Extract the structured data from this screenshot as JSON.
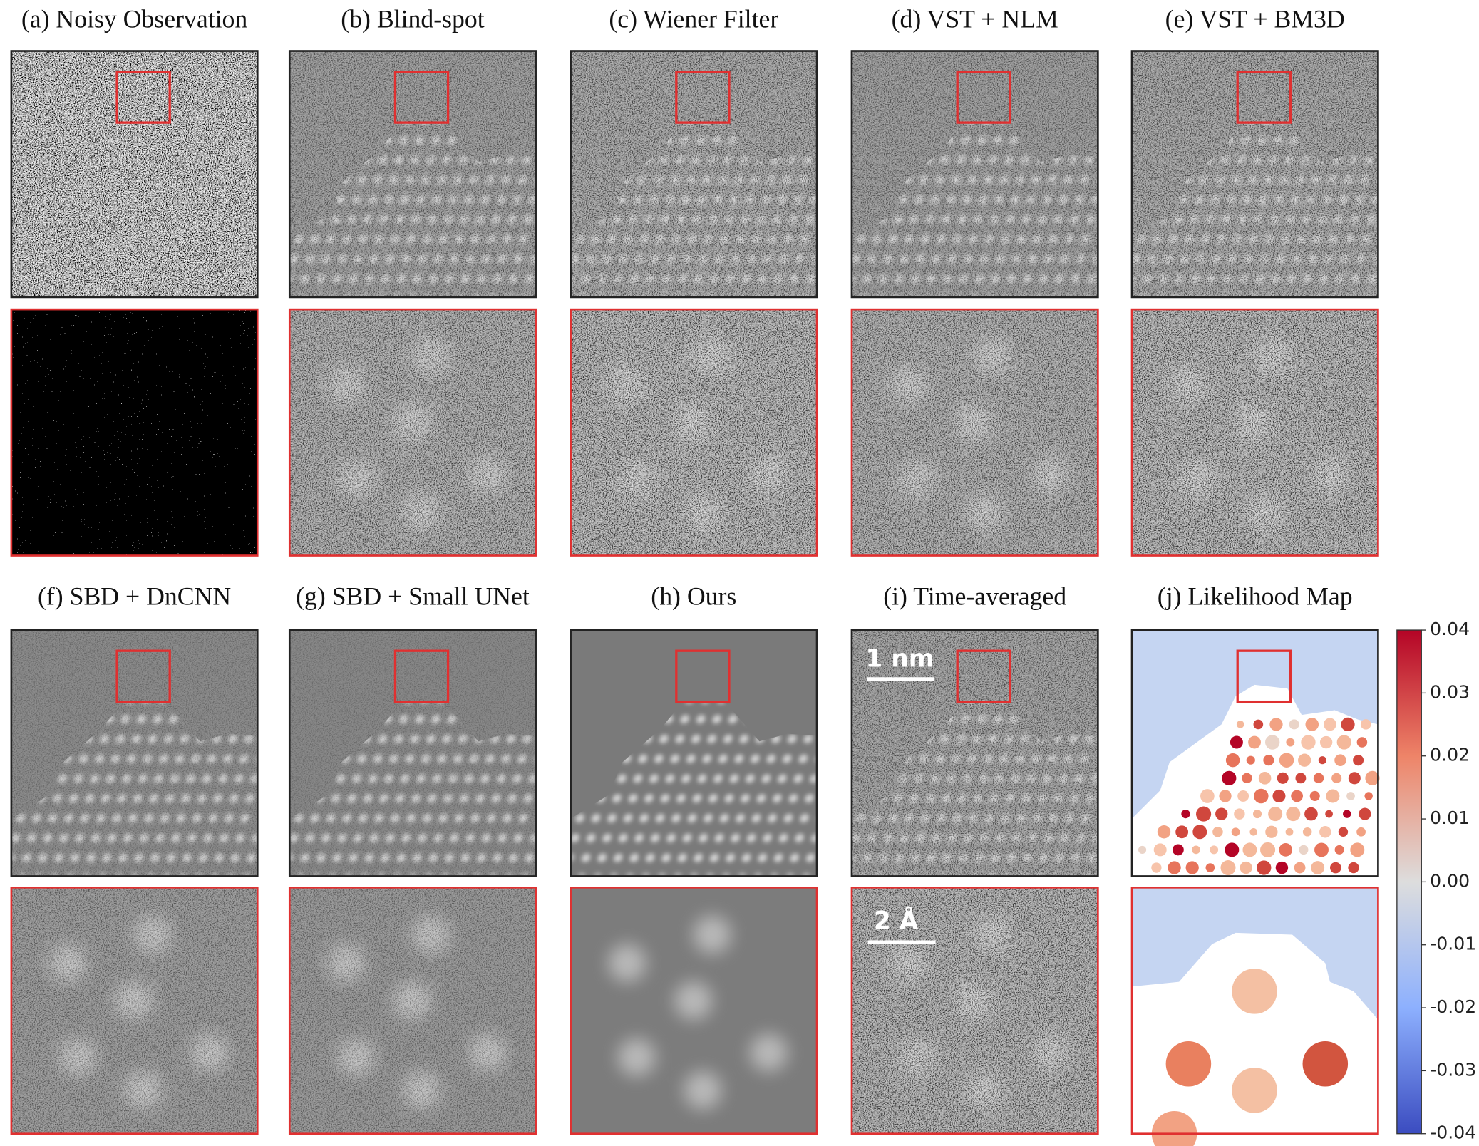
{
  "panels": [
    {
      "title": "(a) Noisy Observation"
    },
    {
      "title": "(b) Blind-spot"
    },
    {
      "title": "(c) Wiener Filter"
    },
    {
      "title": "(d) VST + NLM"
    },
    {
      "title": "(e) VST + BM3D"
    },
    {
      "title": "(f) SBD + DnCNN"
    },
    {
      "title": "(g) SBD + Small UNet"
    },
    {
      "title": "(h) Ours"
    },
    {
      "title": "(i) Time-averaged"
    },
    {
      "title": "(j) Likelihood Map"
    }
  ],
  "scale_bars": [
    "1 nm",
    "2 Å"
  ],
  "colorbar": {
    "lim": [
      -0.04,
      0.04
    ],
    "ticks": [
      0.04,
      0.03,
      0.02,
      0.01,
      {
        "value": 0,
        "label": "0.00"
      },
      -0.01,
      -0.02,
      -0.03,
      -0.04
    ]
  }
}
